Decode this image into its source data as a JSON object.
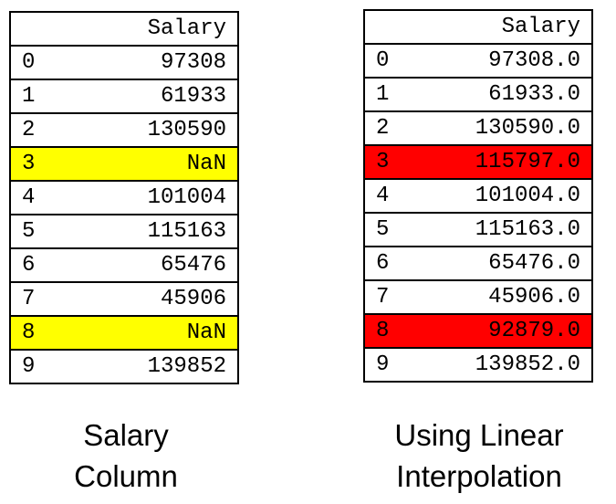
{
  "colors": {
    "missing_highlight": "#ffff00",
    "interpolated_highlight": "#ff0000",
    "border": "#000000"
  },
  "left_table": {
    "header": "Salary",
    "rows": [
      {
        "index": "0",
        "value": "97308",
        "highlight": null
      },
      {
        "index": "1",
        "value": "61933",
        "highlight": null
      },
      {
        "index": "2",
        "value": "130590",
        "highlight": null
      },
      {
        "index": "3",
        "value": "NaN",
        "highlight": "#ffff00"
      },
      {
        "index": "4",
        "value": "101004",
        "highlight": null
      },
      {
        "index": "5",
        "value": "115163",
        "highlight": null
      },
      {
        "index": "6",
        "value": "65476",
        "highlight": null
      },
      {
        "index": "7",
        "value": "45906",
        "highlight": null
      },
      {
        "index": "8",
        "value": "NaN",
        "highlight": "#ffff00"
      },
      {
        "index": "9",
        "value": "139852",
        "highlight": null
      }
    ],
    "caption_line1": "Salary",
    "caption_line2": "Column"
  },
  "right_table": {
    "header": "Salary",
    "rows": [
      {
        "index": "0",
        "value": "97308.0",
        "highlight": null
      },
      {
        "index": "1",
        "value": "61933.0",
        "highlight": null
      },
      {
        "index": "2",
        "value": "130590.0",
        "highlight": null
      },
      {
        "index": "3",
        "value": "115797.0",
        "highlight": "#ff0000"
      },
      {
        "index": "4",
        "value": "101004.0",
        "highlight": null
      },
      {
        "index": "5",
        "value": "115163.0",
        "highlight": null
      },
      {
        "index": "6",
        "value": "65476.0",
        "highlight": null
      },
      {
        "index": "7",
        "value": "45906.0",
        "highlight": null
      },
      {
        "index": "8",
        "value": "92879.0",
        "highlight": "#ff0000"
      },
      {
        "index": "9",
        "value": "139852.0",
        "highlight": null
      }
    ],
    "caption_line1": "Using Linear",
    "caption_line2": "Interpolation"
  }
}
